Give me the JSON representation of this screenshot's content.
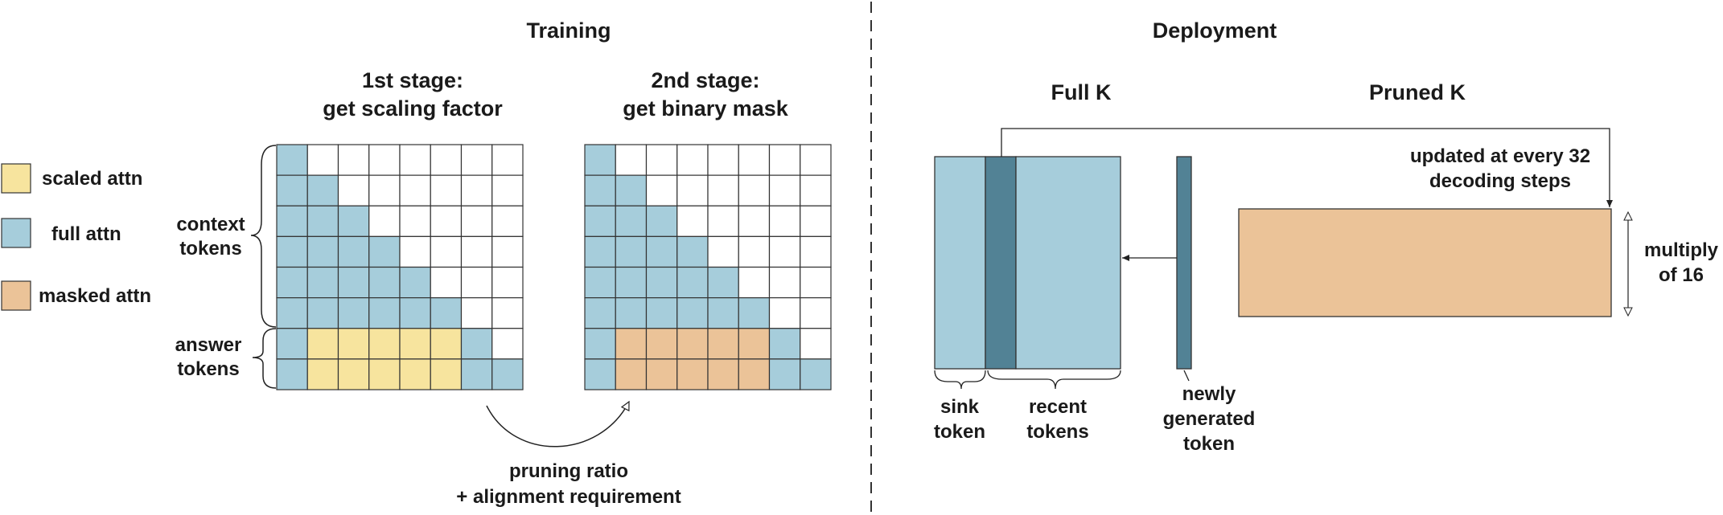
{
  "training": {
    "title": "Training",
    "stage1": {
      "line1": "1st stage:",
      "line2": "get scaling factor"
    },
    "stage2": {
      "line1": "2nd stage:",
      "line2": "get binary mask"
    },
    "context_tokens": {
      "line1": "context",
      "line2": "tokens"
    },
    "answer_tokens": {
      "line1": "answer",
      "line2": "tokens"
    },
    "arrow_note": {
      "line1": "pruning ratio",
      "line2": "+ alignment requirement"
    }
  },
  "legend": {
    "items": [
      {
        "label": "scaled attn",
        "color": "#f7e49e"
      },
      {
        "label": "full attn",
        "color": "#a6cddb"
      },
      {
        "label": "masked attn",
        "color": "#ebc398"
      }
    ]
  },
  "grids": {
    "size": 8,
    "context_rows": 6,
    "answer_rows": 2,
    "stage1_answer_cols": 5,
    "stage2_answer_cols": 5,
    "colors": {
      "full": "#a6cddb",
      "scaled": "#f7e49e",
      "masked": "#ebc398",
      "empty": "#ffffff"
    }
  },
  "deployment": {
    "title": "Deployment",
    "full_k": "Full K",
    "pruned_k": "Pruned K",
    "update_note": {
      "line1": "updated at every 32",
      "line2": "decoding steps"
    },
    "multiply": {
      "line1": "multiply",
      "line2": "of 16"
    },
    "sink": {
      "line1": "sink",
      "line2": "token"
    },
    "recent": {
      "line1": "recent",
      "line2": "tokens"
    },
    "newly": {
      "line1": "newly",
      "line2": "generated",
      "line3": "token"
    },
    "colors": {
      "light": "#a6cddb",
      "dark": "#528295",
      "pruned": "#ebc398"
    }
  }
}
